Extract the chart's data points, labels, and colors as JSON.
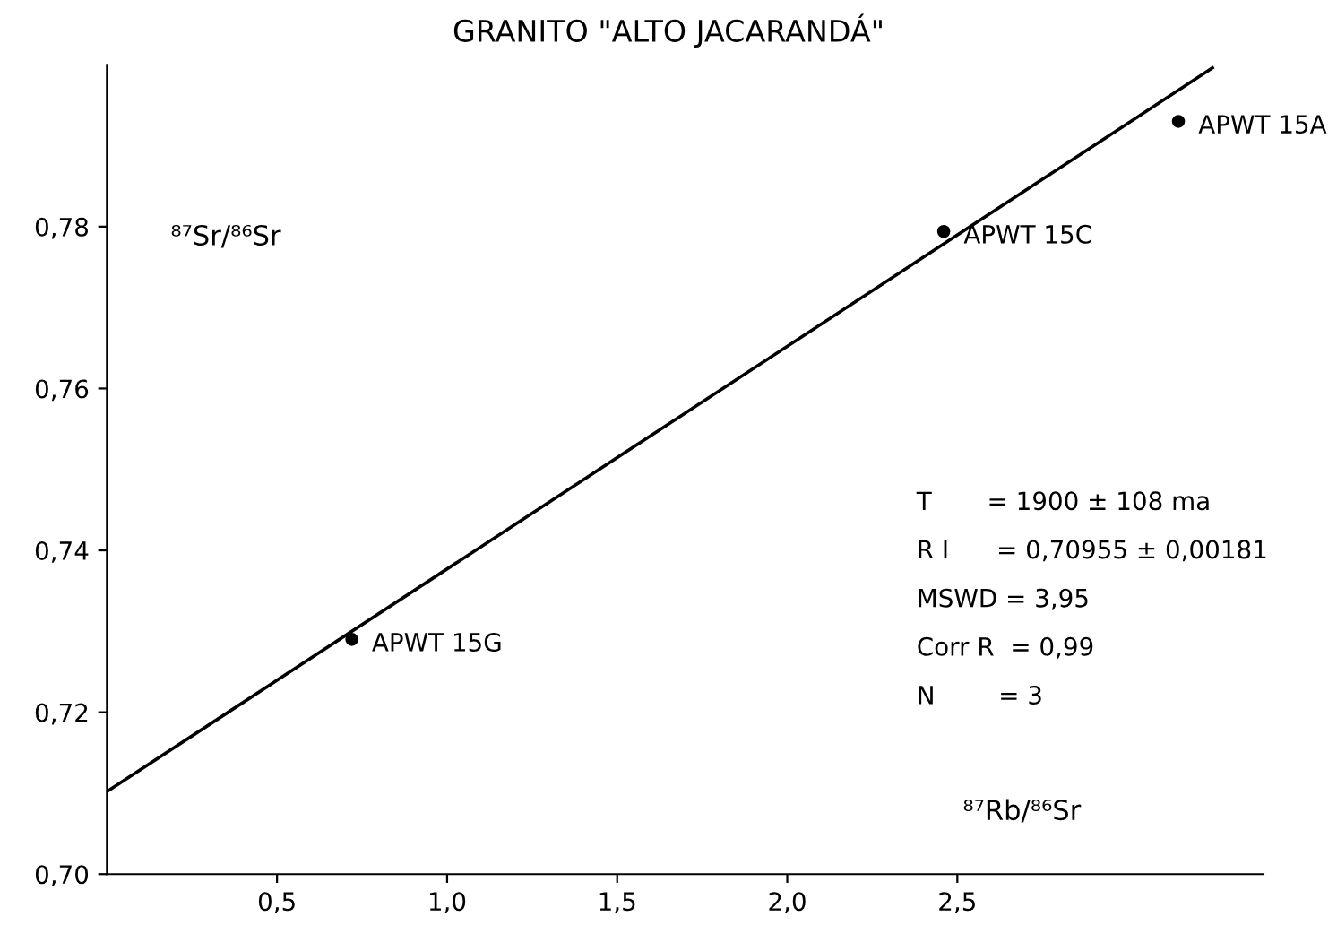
{
  "chart_data": {
    "type": "scatter",
    "title": "GRANITO \"ALTO JACARANDÁ\"",
    "xlabel": "⁸⁷Rb/⁸⁶Sr",
    "ylabel": "⁸⁷Sr/⁸⁶Sr",
    "xlim": [
      0,
      3.4
    ],
    "ylim": [
      0.7,
      0.8
    ],
    "xticks": [
      {
        "value": 0.5,
        "label": "0,5"
      },
      {
        "value": 1.0,
        "label": "1,0"
      },
      {
        "value": 1.5,
        "label": "1,5"
      },
      {
        "value": 2.0,
        "label": "2,0"
      },
      {
        "value": 2.5,
        "label": "2,5"
      }
    ],
    "yticks": [
      {
        "value": 0.7,
        "label": "0,70"
      },
      {
        "value": 0.72,
        "label": "0,72"
      },
      {
        "value": 0.74,
        "label": "0,74"
      },
      {
        "value": 0.76,
        "label": "0,76"
      },
      {
        "value": 0.78,
        "label": "0,78"
      }
    ],
    "grid": false,
    "legend": false,
    "series": [
      {
        "color": "#000000",
        "marker": "circle",
        "x": [
          0.72,
          2.46,
          3.15
        ],
        "values": [
          0.729,
          0.7794,
          0.793
        ]
      },
      {
        "type": "line",
        "color": "#000000",
        "marker": "none",
        "line_style": "solid",
        "x": [
          0,
          3.25
        ],
        "values": [
          0.7102,
          0.7996
        ]
      }
    ],
    "annotations": [
      {
        "text": "APWT 15G",
        "x": 0.72,
        "y": 0.729
      },
      {
        "text": "APWT 15C",
        "x": 2.46,
        "y": 0.7794
      },
      {
        "text": "APWT 15A",
        "x": 3.15,
        "y": 0.793
      },
      "T       = 1900 ± 108 ma",
      "R I      = 0,70955 ± 0,00181",
      "MSWD = 3,95",
      "Corr R  = 0,99",
      "N        = 3"
    ]
  }
}
